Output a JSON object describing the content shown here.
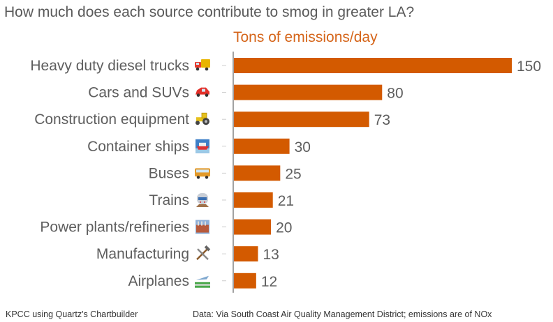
{
  "chart_data": {
    "type": "bar",
    "orientation": "horizontal",
    "title": "How much does each source contribute to smog in greater LA?",
    "subtitle": "Tons of emissions/day",
    "xlabel": "",
    "ylabel": "",
    "xlim": [
      0,
      150
    ],
    "grid": false,
    "bar_color": "#d35a00",
    "categories": [
      "Heavy duty diesel trucks",
      "Cars and SUVs",
      "Construction equipment",
      "Container ships",
      "Buses",
      "Trains",
      "Power plants/refineries",
      "Manufacturing",
      "Airplanes"
    ],
    "icons": [
      "truck-icon",
      "car-icon",
      "tractor-icon",
      "ship-icon",
      "bus-icon",
      "train-icon",
      "factory-icon",
      "hammer-wrench-icon",
      "airplane-icon"
    ],
    "values": [
      150,
      80,
      73,
      30,
      25,
      21,
      20,
      13,
      12
    ],
    "value_labels": [
      "150",
      "80",
      "73",
      "30",
      "25",
      "21",
      "20",
      "13",
      "12"
    ]
  },
  "footer": {
    "credit": "KPCC using Quartz's Chartbuilder",
    "source": "Data: Via South Coast Air Quality Management District; emissions are of NOx"
  }
}
